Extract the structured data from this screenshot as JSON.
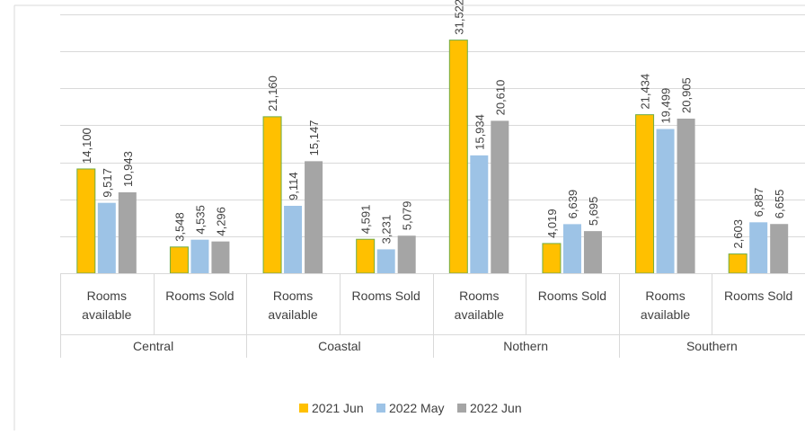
{
  "chart_data": {
    "type": "bar",
    "grouped_categories": [
      {
        "group": "Central",
        "subcategories": [
          "Rooms available",
          "Rooms Sold"
        ]
      },
      {
        "group": "Coastal",
        "subcategories": [
          "Rooms available",
          "Rooms Sold"
        ]
      },
      {
        "group": "Nothern",
        "subcategories": [
          "Rooms available",
          "Rooms Sold"
        ]
      },
      {
        "group": "Southern",
        "subcategories": [
          "Rooms available",
          "Rooms Sold"
        ]
      }
    ],
    "series": [
      {
        "name": "2021 Jun",
        "color": "#FFC000",
        "values": [
          14100,
          3548,
          21160,
          4591,
          31522,
          4019,
          21434,
          2603
        ]
      },
      {
        "name": "2022 May",
        "color": "#9DC3E6",
        "values": [
          9517,
          4535,
          9114,
          3231,
          15934,
          6639,
          19499,
          6887
        ]
      },
      {
        "name": "2022 Jun",
        "color": "#A5A5A5",
        "values": [
          10943,
          4296,
          15147,
          5079,
          20610,
          5695,
          20905,
          6655
        ]
      }
    ],
    "data_labels": [
      [
        "14,100",
        "3,548",
        "21,160",
        "4,591",
        "31,522",
        "4,019",
        "21,434",
        "2,603"
      ],
      [
        "9,517",
        "4,535",
        "9,114",
        "3,231",
        "15,934",
        "6,639",
        "19,499",
        "6,887"
      ],
      [
        "10,943",
        "4,296",
        "15,147",
        "5,079",
        "20,610",
        "5,695",
        "20,905",
        "6,655"
      ]
    ],
    "ylim": [
      0,
      35000
    ],
    "grid": true,
    "legend_position": "bottom",
    "bar_outline_color": "#70AD47"
  }
}
